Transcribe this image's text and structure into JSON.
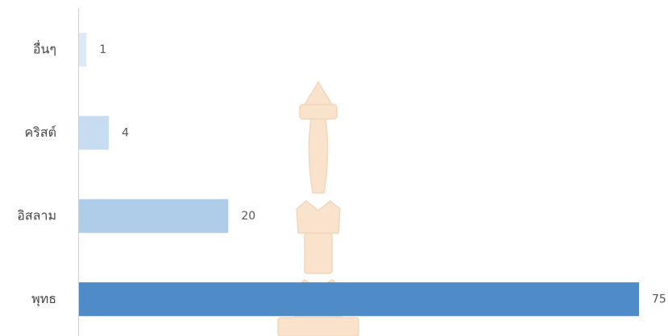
{
  "chart_data": {
    "type": "bar",
    "orientation": "horizontal",
    "categories": [
      "อื่นๆ",
      "คริสต์",
      "อิสลาม",
      "พุทธ"
    ],
    "values": [
      1,
      4,
      20,
      75
    ],
    "colors": [
      "#dde9f7",
      "#c7dcf1",
      "#afcce8",
      "#4f8cc7"
    ]
  }
}
